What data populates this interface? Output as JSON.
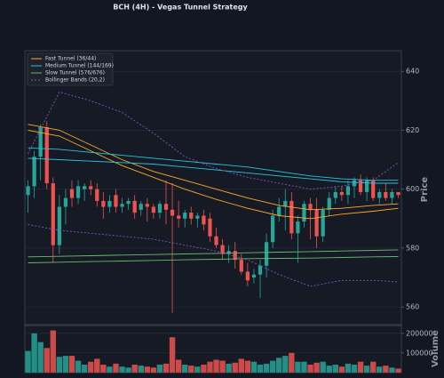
{
  "chart_data": [
    {
      "type": "candlestick",
      "title": "BCH (4H) - Vegas Tunnel Strategy",
      "ylabel": "Price",
      "ylim": [
        554,
        647
      ],
      "yticks": [
        560,
        580,
        600,
        620,
        640
      ],
      "grid": true,
      "legend": "upper left",
      "up_color": "#26a69a",
      "down_color": "#ef5350",
      "open": [
        598,
        601,
        611,
        621,
        602,
        581,
        594,
        600,
        597,
        600,
        601,
        600,
        596,
        594,
        598,
        594,
        595,
        596,
        593,
        595,
        594,
        592,
        595,
        593,
        591,
        590,
        592,
        590,
        591,
        590,
        584,
        581,
        578,
        579,
        576,
        572,
        570,
        571,
        574,
        582,
        591,
        594,
        596,
        585,
        589,
        595,
        593,
        584,
        593,
        597,
        599,
        598,
        601,
        603,
        599,
        603,
        597,
        599,
        597,
        599
      ],
      "high": [
        603,
        613,
        622,
        623,
        604,
        598,
        600,
        603,
        603,
        602,
        603,
        602,
        599,
        598,
        600,
        597,
        597,
        598,
        596,
        597,
        595,
        596,
        603,
        602,
        596,
        593,
        594,
        592,
        593,
        592,
        587,
        583,
        581,
        582,
        578,
        575,
        573,
        576,
        585,
        593,
        597,
        600,
        599,
        591,
        596,
        597,
        597,
        594,
        599,
        601,
        601,
        603,
        604,
        605,
        604,
        604,
        600,
        602,
        600,
        599
      ],
      "low": [
        592,
        597,
        603,
        600,
        575,
        578,
        588,
        594,
        595,
        596,
        598,
        594,
        590,
        592,
        592,
        592,
        593,
        590,
        591,
        589,
        590,
        590,
        588,
        558,
        587,
        587,
        588,
        587,
        586,
        582,
        580,
        576,
        575,
        573,
        571,
        567,
        568,
        563,
        570,
        580,
        589,
        586,
        583,
        575,
        587,
        583,
        580,
        582,
        591,
        595,
        596,
        595,
        597,
        598,
        596,
        596,
        595,
        596,
        595,
        597
      ],
      "close": [
        601,
        611,
        621,
        602,
        581,
        594,
        597,
        597,
        601,
        601,
        600,
        596,
        594,
        596,
        594,
        595,
        596,
        592,
        595,
        594,
        592,
        595,
        593,
        591,
        590,
        592,
        590,
        591,
        588,
        584,
        581,
        578,
        579,
        576,
        572,
        569,
        571,
        574,
        582,
        591,
        594,
        596,
        585,
        589,
        595,
        593,
        584,
        593,
        597,
        599,
        598,
        601,
        603,
        599,
        603,
        597,
        599,
        597,
        599,
        598
      ],
      "overlays": [
        {
          "name": "Fast Tunnel (36/44)",
          "color": "#ffa726",
          "dashed": false,
          "x": [
            0,
            5,
            10,
            15,
            20,
            25,
            30,
            35,
            40,
            45,
            50,
            55,
            59
          ],
          "upper": [
            622,
            620,
            615,
            610,
            606,
            603,
            600,
            597,
            594.5,
            593,
            593.5,
            594.5,
            595
          ],
          "lower": [
            620,
            618,
            613,
            608,
            604,
            600,
            596.5,
            593.5,
            591,
            590,
            591.5,
            592.5,
            593.5
          ]
        },
        {
          "name": "Medium Tunnel (144/169)",
          "color": "#26c6da",
          "dashed": false,
          "x": [
            0,
            5,
            10,
            15,
            20,
            25,
            30,
            35,
            40,
            45,
            50,
            55,
            59
          ],
          "upper": [
            614,
            613.5,
            612.5,
            611.5,
            610.5,
            609.5,
            608.5,
            607.5,
            606,
            604.5,
            603.5,
            603,
            603
          ],
          "lower": [
            610.5,
            610,
            609.5,
            609,
            608.5,
            607.5,
            606.5,
            605.5,
            604.5,
            603.5,
            602.5,
            602,
            602
          ]
        },
        {
          "name": "Slow Tunnel (576/676)",
          "color": "#66bb6a",
          "dashed": false,
          "x": [
            0,
            5,
            10,
            15,
            20,
            25,
            30,
            35,
            40,
            45,
            50,
            55,
            59
          ],
          "upper": [
            577,
            577.2,
            577.4,
            577.6,
            577.8,
            578,
            578.2,
            578.4,
            578.6,
            578.8,
            579,
            579.2,
            579.4
          ],
          "lower": [
            575,
            575.2,
            575.4,
            575.6,
            575.8,
            576,
            576.2,
            576.4,
            576.5,
            576.6,
            576.8,
            577,
            577.1
          ]
        },
        {
          "name": "Bollinger Bands (20,2)",
          "color": "#7e57c2",
          "dashed": true,
          "x": [
            0,
            5,
            10,
            15,
            20,
            25,
            30,
            35,
            40,
            45,
            50,
            55,
            59
          ],
          "upper": [
            612,
            633,
            630,
            626,
            619,
            611,
            607,
            604,
            602,
            600,
            601,
            603,
            609
          ],
          "lower": [
            588,
            586,
            585,
            584,
            583,
            581,
            579,
            576,
            571,
            567,
            569,
            569,
            568.5
          ]
        }
      ]
    },
    {
      "type": "volume",
      "ylabel": "Volume",
      "ylim": [
        0,
        240000
      ],
      "yticks": [
        100000,
        200000
      ],
      "grid": true,
      "values": [
        110000,
        200000,
        155000,
        125000,
        215000,
        80000,
        85000,
        85000,
        60000,
        40000,
        55000,
        70000,
        40000,
        30000,
        45000,
        30000,
        25000,
        40000,
        35000,
        30000,
        25000,
        40000,
        45000,
        180000,
        65000,
        40000,
        35000,
        30000,
        40000,
        55000,
        65000,
        60000,
        45000,
        50000,
        70000,
        60000,
        55000,
        40000,
        45000,
        60000,
        75000,
        85000,
        100000,
        55000,
        55000,
        40000,
        50000,
        55000,
        35000,
        40000,
        30000,
        45000,
        40000,
        55000,
        35000,
        55000,
        30000,
        35000,
        25000,
        20000
      ]
    }
  ]
}
